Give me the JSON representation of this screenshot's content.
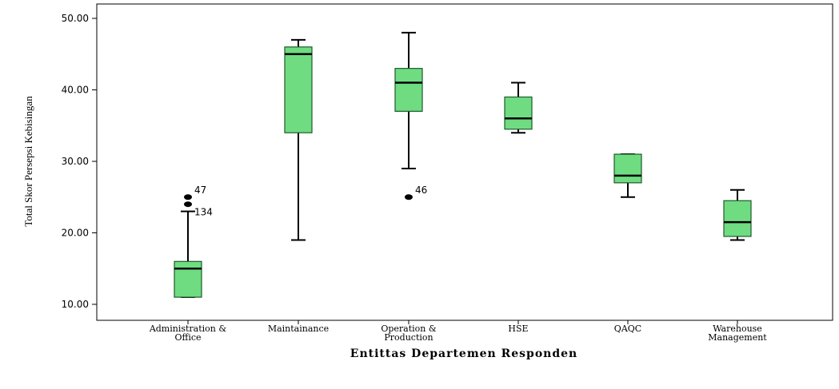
{
  "chart_data": {
    "type": "box",
    "xlabel": "Entittas Departemen Responden",
    "ylabel": "Total Skor Persepsi Kebisingan",
    "ylim": [
      8,
      52
    ],
    "y_ticks": [
      "10.00",
      "20.00",
      "30.00",
      "40.00",
      "50.00"
    ],
    "y_tick_values": [
      10,
      20,
      30,
      40,
      50
    ],
    "box_color": "#6fdc82",
    "categories": [
      [
        "Administration &",
        "Office"
      ],
      [
        "Maintainance"
      ],
      [
        "Operation &",
        "Production"
      ],
      [
        "HSE"
      ],
      [
        "QAQC"
      ],
      [
        "Warehouse",
        "Management"
      ]
    ],
    "boxes": [
      {
        "whisker_low": 11,
        "q1": 11,
        "median": 15,
        "q3": 16,
        "whisker_high": 23,
        "outliers": [
          {
            "value": 25,
            "label": "47"
          },
          {
            "value": 24,
            "label": "134"
          }
        ]
      },
      {
        "whisker_low": 19,
        "q1": 34,
        "median": 45,
        "q3": 46,
        "whisker_high": 47,
        "outliers": []
      },
      {
        "whisker_low": 29,
        "q1": 37,
        "median": 41,
        "q3": 43,
        "whisker_high": 48,
        "outliers": [
          {
            "value": 25,
            "label": "46"
          }
        ]
      },
      {
        "whisker_low": 34,
        "q1": 34.5,
        "median": 36,
        "q3": 39,
        "whisker_high": 41,
        "outliers": []
      },
      {
        "whisker_low": 25,
        "q1": 27,
        "median": 28,
        "q3": 31,
        "whisker_high": 31,
        "outliers": []
      },
      {
        "whisker_low": 19,
        "q1": 19.5,
        "median": 21.5,
        "q3": 24.5,
        "whisker_high": 26,
        "outliers": []
      }
    ]
  }
}
